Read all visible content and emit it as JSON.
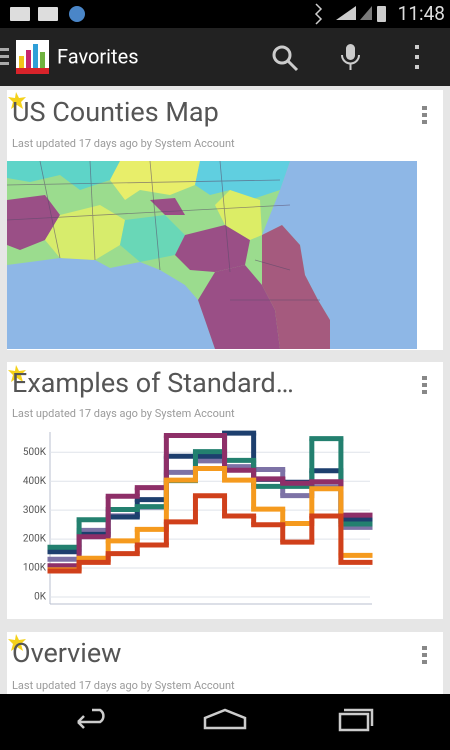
{
  "status": {
    "time": "11:48"
  },
  "header": {
    "title": "Favorites"
  },
  "cards": [
    {
      "title": "US Counties Map",
      "subtitle": "Last updated 17 days ago by System Account"
    },
    {
      "title": "Examples of Standard…",
      "subtitle": "Last updated 17 days ago by System Account",
      "chart": {
        "type": "line",
        "ylim": [
          0,
          570000
        ],
        "yticks": [
          {
            "value": 0,
            "label": "0K"
          },
          {
            "value": 100000,
            "label": "100K"
          },
          {
            "value": 200000,
            "label": "200K"
          },
          {
            "value": 300000,
            "label": "300K"
          },
          {
            "value": 400000,
            "label": "400K"
          },
          {
            "value": 500000,
            "label": "500K"
          }
        ],
        "grid": true,
        "series": [
          {
            "color": "#7d72a6",
            "values": [
              120000,
              220000,
              270000,
              300000,
              420000,
              460000,
              440000,
              430000,
              340000,
              370000,
              230000
            ]
          },
          {
            "color": "#1d3f6e",
            "values": [
              150000,
              210000,
              270000,
              330000,
              480000,
              480000,
              560000,
              400000,
              390000,
              430000,
              260000
            ]
          },
          {
            "color": "#23806f",
            "values": [
              170000,
              265000,
              300000,
              310000,
              400000,
              500000,
              470000,
              380000,
              380000,
              545000,
              250000
            ]
          },
          {
            "color": "#8e2f68",
            "values": [
              110000,
              210000,
              350000,
              380000,
              560000,
              560000,
              440000,
              410000,
              395000,
              400000,
              285000
            ]
          },
          {
            "color": "#f59a1e",
            "values": [
              100000,
              140000,
              200000,
              240000,
              410000,
              450000,
              410000,
              310000,
              260000,
              380000,
              150000
            ]
          },
          {
            "color": "#d0401b",
            "values": [
              100000,
              130000,
              160000,
              190000,
              270000,
              360000,
              290000,
              260000,
              200000,
              290000,
              130000
            ]
          }
        ]
      }
    },
    {
      "title": "Overview",
      "subtitle": "Last updated 17 days ago by System Account"
    }
  ]
}
